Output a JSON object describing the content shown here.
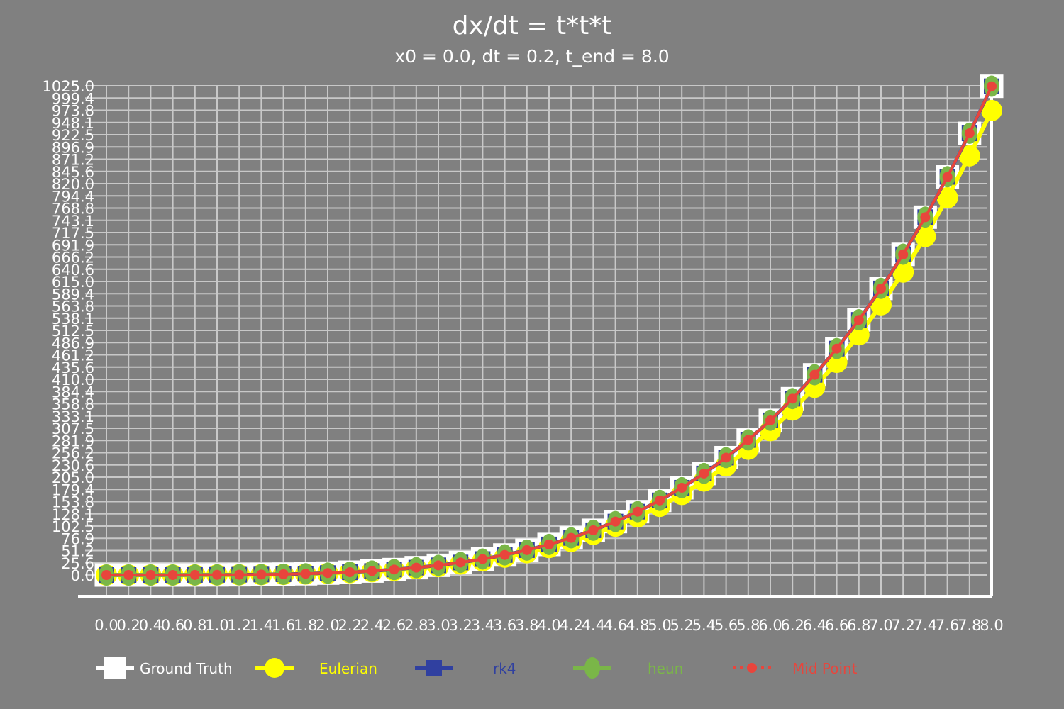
{
  "chart_data": {
    "type": "line",
    "title": "dx/dt = t*t*t",
    "subtitle": "x0 = 0.0, dt = 0.2, t_end = 8.0",
    "xlabel": "",
    "ylabel": "",
    "x": [
      0.0,
      0.2,
      0.4,
      0.6,
      0.8,
      1.0,
      1.2,
      1.4,
      1.6,
      1.8,
      2.0,
      2.2,
      2.4,
      2.6,
      2.8,
      3.0,
      3.2,
      3.4,
      3.6,
      3.8,
      4.0,
      4.2,
      4.4,
      4.6,
      4.8,
      5.0,
      5.2,
      5.4,
      5.6,
      5.8,
      6.0,
      6.2,
      6.4,
      6.6,
      6.8,
      7.0,
      7.2,
      7.4,
      7.6,
      7.8,
      8.0
    ],
    "x_tick_labels": [
      "0.0",
      "0.2",
      "0.4",
      "0.6",
      "0.8",
      "1.0",
      "1.2",
      "1.4",
      "1.6",
      "1.8",
      "2.0",
      "2.2",
      "2.4",
      "2.6",
      "2.8",
      "3.0",
      "3.2",
      "3.4",
      "3.6",
      "3.8",
      "4.0",
      "4.2",
      "4.4",
      "4.6",
      "4.8",
      "5.0",
      "5.2",
      "5.4",
      "5.6",
      "5.8",
      "6.0",
      "6.2",
      "6.4",
      "6.6",
      "6.8",
      "7.0",
      "7.2",
      "7.4",
      "7.6",
      "7.8",
      "8.0"
    ],
    "y_tick_labels": [
      "0.0",
      "25.6",
      "51.2",
      "76.9",
      "102.5",
      "128.1",
      "153.8",
      "179.4",
      "205.0",
      "230.6",
      "256.2",
      "281.9",
      "307.5",
      "333.1",
      "358.8",
      "384.4",
      "410.0",
      "435.6",
      "461.2",
      "486.9",
      "512.5",
      "538.1",
      "563.8",
      "589.4",
      "615.0",
      "640.6",
      "666.2",
      "691.9",
      "717.5",
      "743.1",
      "768.8",
      "794.4",
      "820.0",
      "845.6",
      "871.2",
      "896.9",
      "922.5",
      "948.1",
      "973.8",
      "999.4",
      "1025.0"
    ],
    "ylim": [
      0,
      1025
    ],
    "grid": true,
    "legend_position": "bottom",
    "series": [
      {
        "name": "Ground Truth",
        "color": "#ffffff",
        "marker": "square",
        "values": [
          0.0,
          0.0,
          0.0,
          0.0,
          0.1,
          0.3,
          0.5,
          1.0,
          1.6,
          2.6,
          4.0,
          5.9,
          8.3,
          11.4,
          15.4,
          20.3,
          26.2,
          33.4,
          42.0,
          52.1,
          64.0,
          77.8,
          93.7,
          111.9,
          132.7,
          156.3,
          182.8,
          212.6,
          245.9,
          282.9,
          324.0,
          369.4,
          419.4,
          474.3,
          534.5,
          600.3,
          671.8,
          749.7,
          834.1,
          925.4,
          1024.0
        ]
      },
      {
        "name": "Eulerian",
        "color": "#ffff00",
        "marker": "circle",
        "values": [
          0.0,
          0.0,
          0.0,
          0.0,
          0.1,
          0.2,
          0.4,
          0.7,
          1.2,
          2.0,
          3.2,
          4.8,
          6.9,
          9.7,
          13.2,
          17.6,
          23.0,
          29.6,
          37.4,
          46.7,
          57.6,
          70.4,
          85.2,
          102.2,
          121.7,
          143.8,
          168.8,
          196.9,
          228.4,
          263.5,
          302.5,
          345.7,
          393.3,
          445.7,
          503.2,
          566.1,
          634.7,
          709.3,
          790.4,
          878.2,
          973.2
        ]
      },
      {
        "name": "rk4",
        "color": "#3040a0",
        "marker": "square",
        "values": [
          0.0,
          0.0,
          0.0,
          0.0,
          0.1,
          0.3,
          0.5,
          1.0,
          1.6,
          2.6,
          4.0,
          5.9,
          8.3,
          11.4,
          15.4,
          20.3,
          26.2,
          33.4,
          42.0,
          52.1,
          64.0,
          77.8,
          93.7,
          111.9,
          132.7,
          156.3,
          182.8,
          212.6,
          245.9,
          282.9,
          324.0,
          369.4,
          419.4,
          474.3,
          534.5,
          600.3,
          671.8,
          749.7,
          834.1,
          925.4,
          1024.0
        ]
      },
      {
        "name": "heun",
        "color": "#7ab648",
        "marker": "circle",
        "values": [
          0.0,
          0.0,
          0.0,
          0.0,
          0.1,
          0.3,
          0.5,
          1.0,
          1.7,
          2.6,
          4.0,
          5.9,
          8.4,
          11.5,
          15.4,
          20.3,
          26.3,
          33.5,
          42.1,
          52.2,
          64.1,
          77.9,
          93.8,
          112.0,
          132.8,
          156.4,
          182.9,
          212.7,
          246.0,
          283.1,
          324.2,
          369.6,
          419.6,
          474.5,
          534.7,
          600.5,
          672.1,
          749.9,
          834.4,
          925.7,
          1024.3
        ]
      },
      {
        "name": "Mid Point",
        "color": "#e8453c",
        "marker": "dot",
        "values": [
          0.0,
          0.0,
          0.0,
          0.0,
          0.1,
          0.3,
          0.5,
          1.0,
          1.6,
          2.6,
          4.0,
          5.9,
          8.3,
          11.4,
          15.4,
          20.2,
          26.2,
          33.4,
          42.0,
          52.1,
          64.0,
          77.8,
          93.7,
          111.9,
          132.7,
          156.2,
          182.8,
          212.6,
          245.9,
          282.9,
          323.9,
          369.4,
          419.4,
          474.3,
          534.4,
          600.2,
          671.8,
          749.6,
          834.1,
          925.4,
          1023.9
        ]
      }
    ]
  }
}
